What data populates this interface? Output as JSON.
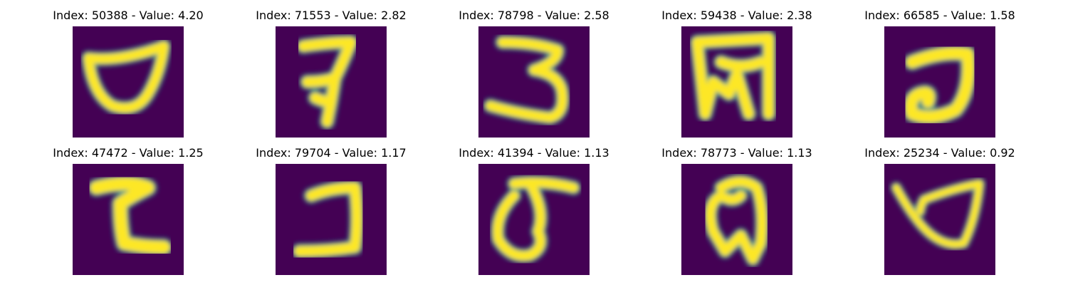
{
  "figure": {
    "panels": [
      {
        "title": "Index: 50388 - Value: 4.20",
        "glyph": "open-cup-shape"
      },
      {
        "title": "Index: 71553 - Value: 2.82",
        "glyph": "seven-like-shape"
      },
      {
        "title": "Index: 78798 - Value: 2.58",
        "glyph": "three-like-shape"
      },
      {
        "title": "Index: 59438 - Value: 2.38",
        "glyph": "w-in-box-shape"
      },
      {
        "title": "Index: 66585 - Value: 1.58",
        "glyph": "hook-loop-shape"
      },
      {
        "title": "Index: 47472 - Value: 1.25",
        "glyph": "c-like-shape"
      },
      {
        "title": "Index: 79704 - Value: 1.17",
        "glyph": "j-like-shape"
      },
      {
        "title": "Index: 41394 - Value: 1.13",
        "glyph": "loop-with-bar-shape"
      },
      {
        "title": "Index: 78773 - Value: 1.13",
        "glyph": "w-with-loop-shape"
      },
      {
        "title": "Index: 25234 - Value: 0.92",
        "glyph": "slanted-cup-shape"
      }
    ],
    "colors": {
      "background": "#440154",
      "stroke_core": "#fde725",
      "stroke_edge": "#35b779",
      "stroke_halo": "#21918c"
    }
  }
}
